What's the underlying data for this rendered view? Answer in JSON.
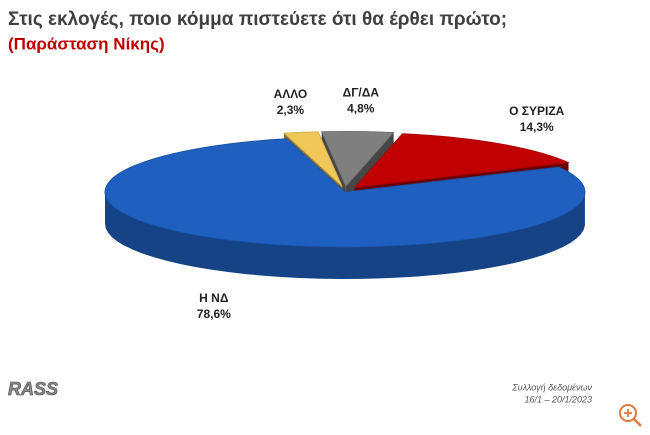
{
  "chart_data": {
    "type": "pie3d",
    "title": "Στις εκλογές, ποιο κόμμα πιστεύετε ότι θα έρθει πρώτο;",
    "subtitle": "(Παράσταση Νίκης)",
    "categories": [
      "ΑΛΛΟ",
      "ΔΓ/ΔΑ",
      "Ο ΣΥΡΙΖΑ",
      "Η ΝΔ"
    ],
    "values": [
      2.3,
      4.8,
      14.3,
      78.6
    ],
    "value_labels": [
      "2,3%",
      "4,8%",
      "14,3%",
      "78,6%"
    ],
    "colors": [
      "#f0c85a",
      "#7f7f7f",
      "#c00000",
      "#1f5fbf"
    ],
    "logo": "RASS",
    "note": [
      "Συλλογή δεδομένων",
      "16/1 – 20/1/2023"
    ]
  }
}
